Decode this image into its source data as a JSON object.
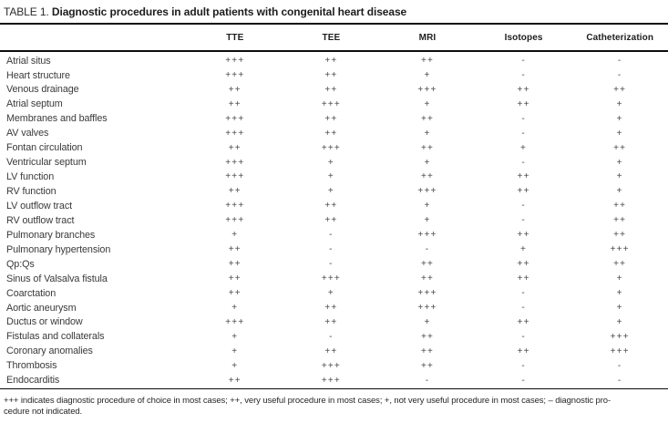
{
  "title": {
    "label": "TABLE 1.",
    "text": "Diagnostic procedures in adult patients with congenital heart disease"
  },
  "table": {
    "columns": [
      "TTE",
      "TEE",
      "MRI",
      "Isotopes",
      "Catheterization"
    ],
    "rows": [
      {
        "label": "Atrial situs",
        "values": [
          "+++",
          "++",
          "++",
          "-",
          "-"
        ]
      },
      {
        "label": "Heart structure",
        "values": [
          "+++",
          "++",
          "+",
          "-",
          "-"
        ]
      },
      {
        "label": "Venous drainage",
        "values": [
          "++",
          "++",
          "+++",
          "++",
          "++"
        ]
      },
      {
        "label": "Atrial septum",
        "values": [
          "++",
          "+++",
          "+",
          "++",
          "+"
        ]
      },
      {
        "label": "Membranes and baffles",
        "values": [
          "+++",
          "++",
          "++",
          "-",
          "+"
        ]
      },
      {
        "label": "AV valves",
        "values": [
          "+++",
          "++",
          "+",
          "-",
          "+"
        ]
      },
      {
        "label": "Fontan circulation",
        "values": [
          "++",
          "+++",
          "++",
          "+",
          "++"
        ]
      },
      {
        "label": "Ventricular septum",
        "values": [
          "+++",
          "+",
          "+",
          "-",
          "+"
        ]
      },
      {
        "label": "LV function",
        "values": [
          "+++",
          "+",
          "++",
          "++",
          "+"
        ]
      },
      {
        "label": "RV function",
        "values": [
          "++",
          "+",
          "+++",
          "++",
          "+"
        ]
      },
      {
        "label": "LV outflow tract",
        "values": [
          "+++",
          "++",
          "+",
          "-",
          "++"
        ]
      },
      {
        "label": "RV outflow tract",
        "values": [
          "+++",
          "++",
          "+",
          "-",
          "++"
        ]
      },
      {
        "label": "Pulmonary branches",
        "values": [
          "+",
          "-",
          "+++",
          "++",
          "++"
        ]
      },
      {
        "label": "Pulmonary hypertension",
        "values": [
          "++",
          "-",
          "-",
          "+",
          "+++"
        ]
      },
      {
        "label": "Qp:Qs",
        "values": [
          "++",
          "-",
          "++",
          "++",
          "++"
        ]
      },
      {
        "label": "Sinus of Valsalva fistula",
        "values": [
          "++",
          "+++",
          "++",
          "++",
          "+"
        ]
      },
      {
        "label": "Coarctation",
        "values": [
          "++",
          "+",
          "+++",
          "-",
          "+"
        ]
      },
      {
        "label": "Aortic aneurysm",
        "values": [
          "+",
          "++",
          "+++",
          "-",
          "+"
        ]
      },
      {
        "label": "Ductus or window",
        "values": [
          "+++",
          "++",
          "+",
          "++",
          "+"
        ]
      },
      {
        "label": "Fistulas and collaterals",
        "values": [
          "+",
          "-",
          "++",
          "-",
          "+++"
        ]
      },
      {
        "label": "Coronary anomalies",
        "values": [
          "+",
          "++",
          "++",
          "++",
          "+++"
        ]
      },
      {
        "label": "Thrombosis",
        "values": [
          "+",
          "+++",
          "++",
          "-",
          "-"
        ]
      },
      {
        "label": "Endocarditis",
        "values": [
          "++",
          "+++",
          "-",
          "-",
          "-"
        ]
      }
    ]
  },
  "footnote": {
    "line1": "+++ indicates diagnostic procedure of choice in most cases; ++, very useful procedure in most cases; +, not very useful procedure in most cases; – diagnostic pro-",
    "line2": "cedure not indicated."
  }
}
